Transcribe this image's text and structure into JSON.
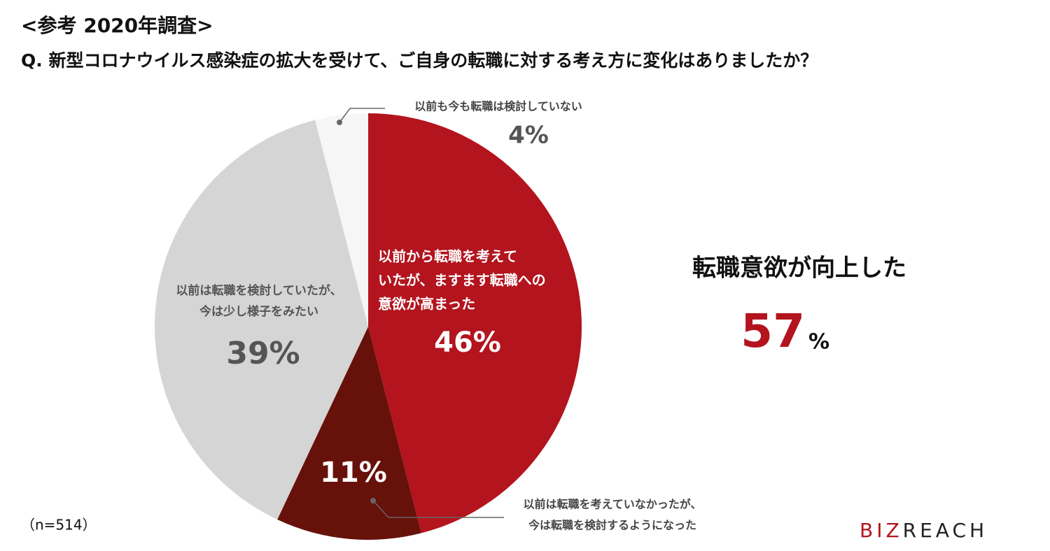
{
  "chart_data": {
    "type": "pie",
    "title": "<参考 2020年調査>",
    "subtitle": "Q. 新型コロナウイルス感染症の拡大を受けて、ご自身の転職に対する考え方に変化はありましたか？",
    "categories": [
      [
        "以前から転職を考えて",
        "いたが、ますます転職への",
        "意欲が高まった"
      ],
      [
        "以前は転職を考えていなかったが、",
        "今は転職を検討するようになった"
      ],
      [
        "以前は転職を検討していたが、",
        "今は少し様子をみたい"
      ],
      [
        "以前も今も転職は検討していない"
      ]
    ],
    "values": [
      46,
      11,
      39,
      4
    ],
    "value_labels": [
      "46%",
      "11%",
      "39%",
      "4%"
    ],
    "colors": [
      "#b3141e",
      "#67110b",
      "#d5d5d5",
      "#f6f6f6"
    ],
    "highlight": {
      "label": "転職意欲が向上した",
      "value": 57,
      "unit": "%"
    },
    "note": "（n=514）",
    "logo": [
      "BIZ",
      "REACH"
    ]
  }
}
